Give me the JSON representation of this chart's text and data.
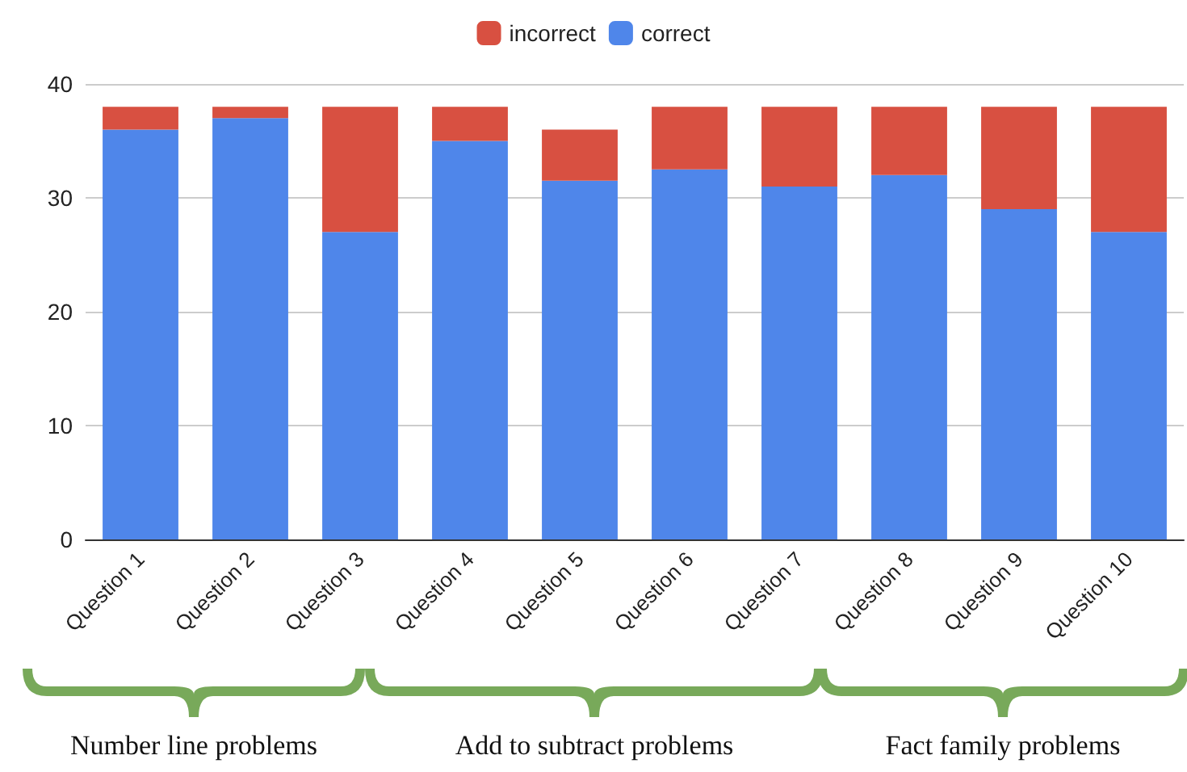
{
  "chart_data": {
    "type": "bar",
    "stacked": true,
    "categories": [
      "Question 1",
      "Question 2",
      "Question 3",
      "Question 4",
      "Question 5",
      "Question 6",
      "Question 7",
      "Question 8",
      "Question 9",
      "Question 10"
    ],
    "series": [
      {
        "name": "correct",
        "color": "#4f86ea",
        "values": [
          36,
          37,
          27,
          35,
          31.5,
          32.5,
          31,
          32,
          29,
          27
        ]
      },
      {
        "name": "incorrect",
        "color": "#d85041",
        "values": [
          2,
          1,
          11,
          3,
          4.5,
          5.5,
          7,
          6,
          9,
          11
        ]
      }
    ],
    "ylim": [
      0,
      40
    ],
    "yticks": [
      0,
      10,
      20,
      30,
      40
    ],
    "grid": "y",
    "legend": "top",
    "annotations": [
      "Number line problems",
      "Add to subtract problems",
      "Fact family problems"
    ]
  }
}
